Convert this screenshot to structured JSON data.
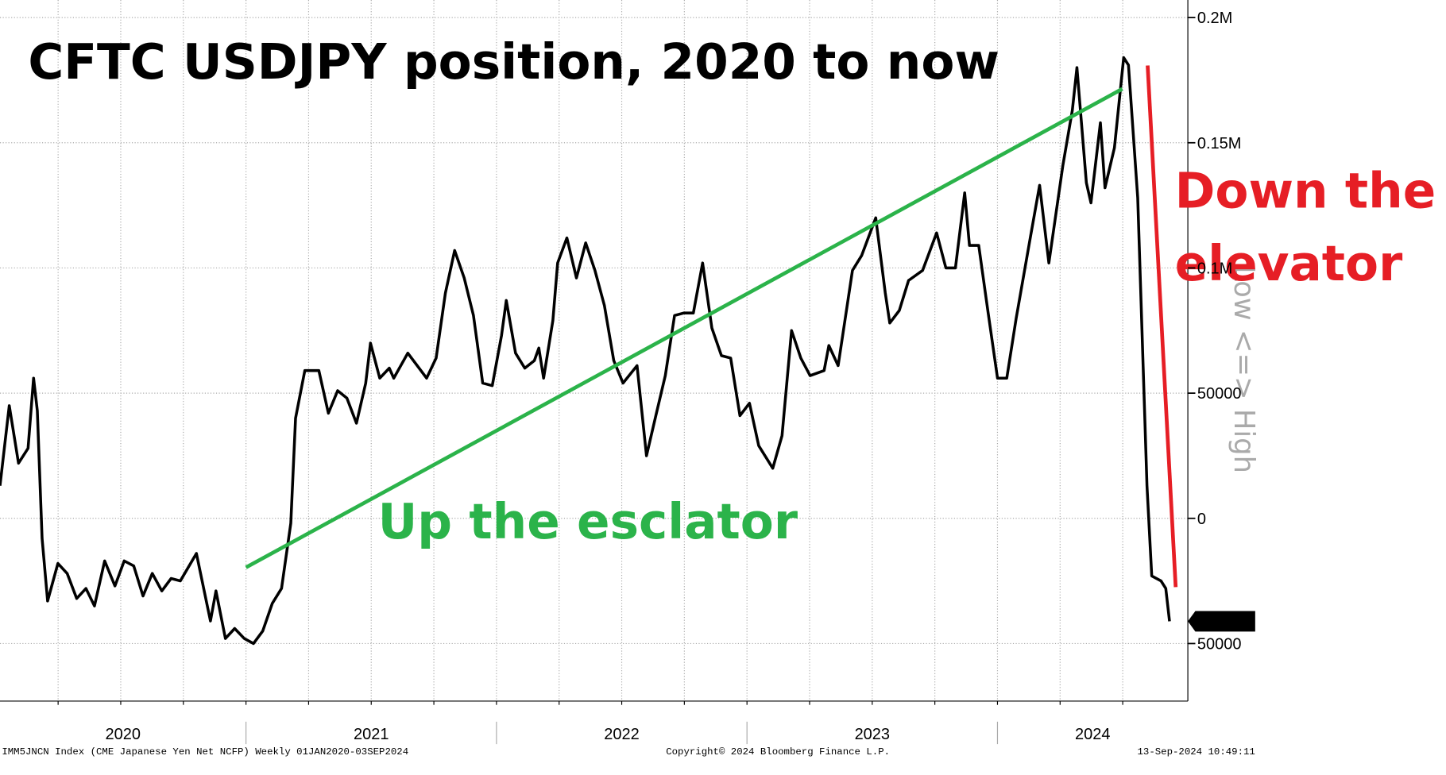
{
  "chart_data": {
    "type": "line",
    "title": "CFTC USDJPY position, 2020 to now",
    "axis_note": "Low <=> High",
    "annotations": [
      {
        "text": "Up the esclator",
        "color": "#2bb34a"
      },
      {
        "text": "Down the",
        "color": "#e61e25"
      },
      {
        "text": "elevator",
        "color": "#e61e25"
      }
    ],
    "x": [
      2020.018,
      2020.055,
      2020.092,
      2020.13,
      2020.152,
      2020.167,
      2020.186,
      2020.208,
      2020.249,
      2020.286,
      2020.324,
      2020.361,
      2020.395,
      2020.436,
      2020.477,
      2020.514,
      2020.552,
      2020.589,
      2020.626,
      2020.664,
      2020.701,
      2020.738,
      2020.802,
      2020.858,
      2020.88,
      2020.918,
      2020.955,
      2020.993,
      2021.03,
      2021.067,
      2021.105,
      2021.142,
      2021.179,
      2021.198,
      2021.235,
      2021.291,
      2021.329,
      2021.366,
      2021.403,
      2021.441,
      2021.478,
      2021.497,
      2021.534,
      2021.572,
      2021.59,
      2021.646,
      2021.721,
      2021.759,
      2021.796,
      2021.833,
      2021.871,
      2021.908,
      2021.945,
      2021.983,
      2022.02,
      2022.039,
      2022.076,
      2022.113,
      2022.151,
      2022.169,
      2022.188,
      2022.225,
      2022.244,
      2022.281,
      2022.319,
      2022.356,
      2022.393,
      2022.431,
      2022.468,
      2022.505,
      2022.561,
      2022.599,
      2022.636,
      2022.674,
      2022.711,
      2022.748,
      2022.786,
      2022.823,
      2022.86,
      2022.898,
      2022.935,
      2022.972,
      2023.01,
      2023.047,
      2023.103,
      2023.14,
      2023.178,
      2023.215,
      2023.252,
      2023.308,
      2023.327,
      2023.364,
      2023.421,
      2023.458,
      2023.514,
      2023.552,
      2023.57,
      2023.608,
      2023.645,
      2023.701,
      2023.757,
      2023.794,
      2023.832,
      2023.869,
      2023.888,
      2023.925,
      2023.963,
      2024.0,
      2024.037,
      2024.075,
      2024.131,
      2024.168,
      2024.205,
      2024.261,
      2024.299,
      2024.317,
      2024.355,
      2024.373,
      2024.411,
      2024.429,
      2024.467,
      2024.504,
      2024.523,
      2024.56,
      2024.597,
      2024.616,
      2024.653,
      2024.672,
      2024.687
    ],
    "series": [
      {
        "name": "IMM5JNCN Index",
        "color": "#000000",
        "values": [
          -13000,
          -45000,
          -22000,
          -28000,
          -56000,
          -43000,
          8000,
          33000,
          18000,
          22000,
          32000,
          28000,
          35000,
          17000,
          27000,
          17000,
          19000,
          31000,
          22000,
          29000,
          24000,
          25000,
          14000,
          41000,
          29000,
          48000,
          44000,
          48000,
          50000,
          45000,
          34000,
          28000,
          2000,
          -40000,
          -59000,
          -59000,
          -42000,
          -51000,
          -48000,
          -38000,
          -54000,
          -70000,
          -56000,
          -60000,
          -56000,
          -66000,
          -56000,
          -64000,
          -90000,
          -107000,
          -96000,
          -81000,
          -54000,
          -53000,
          -73000,
          -87000,
          -66000,
          -60000,
          -63000,
          -68000,
          -56000,
          -79000,
          -102000,
          -112000,
          -96000,
          -110000,
          -99000,
          -85000,
          -63000,
          -54000,
          -61000,
          -25000,
          -41000,
          -57000,
          -81000,
          -82000,
          -82000,
          -102000,
          -76000,
          -65000,
          -64000,
          -41000,
          -46000,
          -29000,
          -20000,
          -33000,
          -75000,
          -64000,
          -57000,
          -59000,
          -69000,
          -61000,
          -99000,
          -105000,
          -120000,
          -90000,
          -78000,
          -83000,
          -95000,
          -99000,
          -114000,
          -100000,
          -100000,
          -130000,
          -109000,
          -109000,
          -82000,
          -56000,
          -56000,
          -80000,
          -112000,
          -133000,
          -102000,
          -141000,
          -163000,
          -180000,
          -134000,
          -126000,
          -158000,
          -132000,
          -148000,
          -184000,
          -181000,
          -128000,
          -13000,
          23000,
          25000,
          28000,
          41116
        ]
      }
    ],
    "xlim": [
      2020.018,
      2024.76
    ],
    "xticks": [
      2020,
      2021,
      2022,
      2023,
      2024
    ],
    "x_minor_ticks": [
      2020.25,
      2020.5,
      2020.75,
      2021,
      2021.25,
      2021.5,
      2021.75,
      2022,
      2022.25,
      2022.5,
      2022.75,
      2023,
      2023.25,
      2023.5,
      2023.75,
      2024,
      2024.25,
      2024.5
    ],
    "ylim": [
      73000,
      -207000
    ],
    "yticks": [
      {
        "value": -200000,
        "label": "0.2M"
      },
      {
        "value": -150000,
        "label": "0.15M"
      },
      {
        "value": -100000,
        "label": "0.1M"
      },
      {
        "value": -50000,
        "label": "50000"
      },
      0,
      50000
    ],
    "grid": true
  },
  "footer": {
    "left": "IMM5JNCN Index (CME Japanese Yen Net NCFP)  Weekly 01JAN2020-03SEP2024",
    "center": "Copyright© 2024 Bloomberg Finance L.P.",
    "right": "13-Sep-2024 10:49:11"
  }
}
